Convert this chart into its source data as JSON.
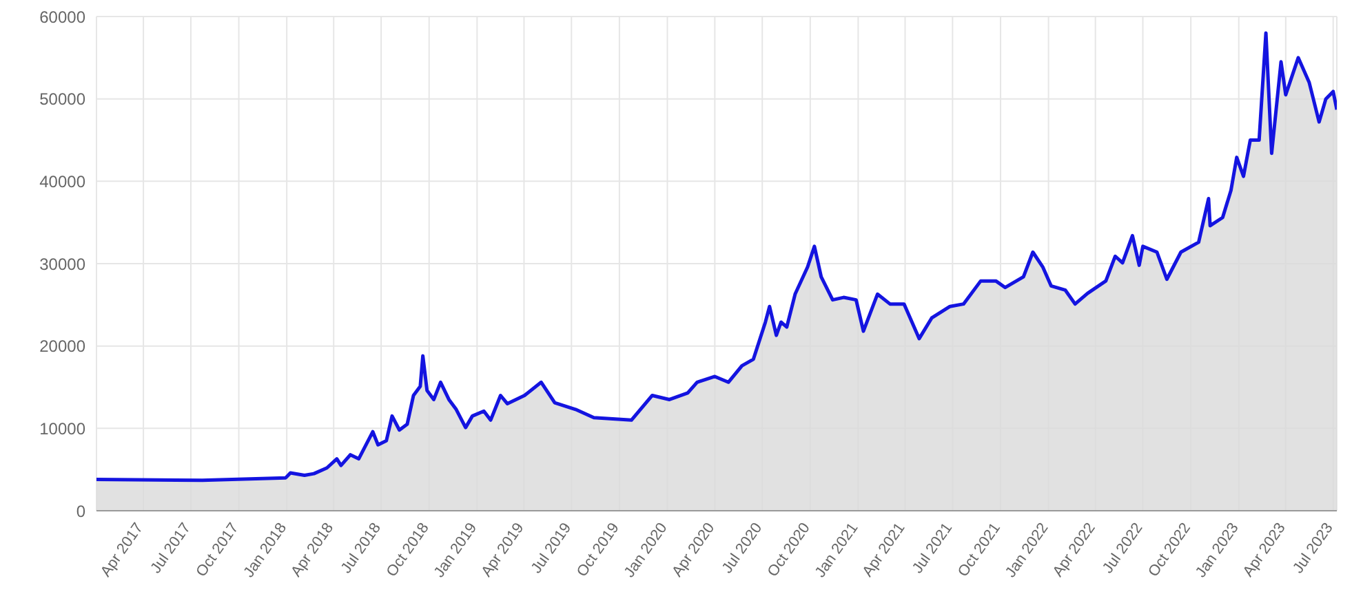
{
  "chart_data": {
    "type": "area",
    "grid": true,
    "xlim": [
      "2017-01-01",
      "2023-07-08"
    ],
    "ylim": [
      0,
      60000
    ],
    "yticks": [
      0,
      10000,
      20000,
      30000,
      40000,
      50000,
      60000
    ],
    "xticks": [
      {
        "value": "2017-04-01",
        "label": "Apr 2017"
      },
      {
        "value": "2017-07-01",
        "label": "Jul 2017"
      },
      {
        "value": "2017-10-01",
        "label": "Oct 2017"
      },
      {
        "value": "2018-01-01",
        "label": "Jan 2018"
      },
      {
        "value": "2018-04-01",
        "label": "Apr 2018"
      },
      {
        "value": "2018-07-01",
        "label": "Jul 2018"
      },
      {
        "value": "2018-10-01",
        "label": "Oct 2018"
      },
      {
        "value": "2019-01-01",
        "label": "Jan 2019"
      },
      {
        "value": "2019-04-01",
        "label": "Apr 2019"
      },
      {
        "value": "2019-07-01",
        "label": "Jul 2019"
      },
      {
        "value": "2019-10-01",
        "label": "Oct 2019"
      },
      {
        "value": "2020-01-01",
        "label": "Jan 2020"
      },
      {
        "value": "2020-04-01",
        "label": "Apr 2020"
      },
      {
        "value": "2020-07-01",
        "label": "Jul 2020"
      },
      {
        "value": "2020-10-01",
        "label": "Oct 2020"
      },
      {
        "value": "2021-01-01",
        "label": "Jan 2021"
      },
      {
        "value": "2021-04-01",
        "label": "Apr 2021"
      },
      {
        "value": "2021-07-01",
        "label": "Jul 2021"
      },
      {
        "value": "2021-10-01",
        "label": "Oct 2021"
      },
      {
        "value": "2022-01-01",
        "label": "Jan 2022"
      },
      {
        "value": "2022-04-01",
        "label": "Apr 2022"
      },
      {
        "value": "2022-07-01",
        "label": "Jul 2022"
      },
      {
        "value": "2022-10-01",
        "label": "Oct 2022"
      },
      {
        "value": "2023-01-01",
        "label": "Jan 2023"
      },
      {
        "value": "2023-04-01",
        "label": "Apr 2023"
      },
      {
        "value": "2023-07-01",
        "label": "Jul 2023"
      }
    ],
    "x": [
      "2017-01-01",
      "2017-07-23",
      "2017-12-30",
      "2018-01-08",
      "2018-02-04",
      "2018-02-22",
      "2018-03-19",
      "2018-04-07",
      "2018-04-15",
      "2018-05-03",
      "2018-05-19",
      "2018-06-15",
      "2018-06-25",
      "2018-07-11",
      "2018-07-22",
      "2018-08-05",
      "2018-08-20",
      "2018-09-01",
      "2018-09-14",
      "2018-09-19",
      "2018-09-27",
      "2018-10-10",
      "2018-10-23",
      "2018-11-08",
      "2018-11-22",
      "2018-12-10",
      "2018-12-23",
      "2019-01-14",
      "2019-01-27",
      "2019-02-15",
      "2019-02-28",
      "2019-04-02",
      "2019-05-04",
      "2019-05-30",
      "2019-07-09",
      "2019-08-13",
      "2019-10-24",
      "2019-12-03",
      "2020-01-05",
      "2020-02-09",
      "2020-02-27",
      "2020-04-01",
      "2020-04-27",
      "2020-05-23",
      "2020-06-14",
      "2020-07-07",
      "2020-07-15",
      "2020-07-28",
      "2020-08-06",
      "2020-08-17",
      "2020-09-02",
      "2020-09-26",
      "2020-10-09",
      "2020-10-22",
      "2020-11-13",
      "2020-12-04",
      "2020-12-28",
      "2021-01-11",
      "2021-02-07",
      "2021-03-03",
      "2021-03-30",
      "2021-04-28",
      "2021-05-22",
      "2021-06-26",
      "2021-07-22",
      "2021-08-24",
      "2021-09-22",
      "2021-10-10",
      "2021-11-14",
      "2021-12-02",
      "2021-12-21",
      "2022-01-06",
      "2022-02-02",
      "2022-02-21",
      "2022-03-17",
      "2022-04-21",
      "2022-05-09",
      "2022-05-23",
      "2022-06-11",
      "2022-06-24",
      "2022-07-01",
      "2022-07-28",
      "2022-08-16",
      "2022-09-12",
      "2022-10-16",
      "2022-11-04",
      "2022-11-07",
      "2022-12-01",
      "2022-12-17",
      "2022-12-28",
      "2023-01-10",
      "2023-01-23",
      "2023-02-09",
      "2023-02-22",
      "2023-03-05",
      "2023-03-23",
      "2023-04-01",
      "2023-04-25",
      "2023-05-16",
      "2023-06-04",
      "2023-06-17",
      "2023-07-01",
      "2023-07-08"
    ],
    "series": [
      {
        "color": "#1414e0",
        "values": [
          3800,
          3700,
          4000,
          4600,
          4300,
          4500,
          5200,
          6300,
          5500,
          6800,
          6300,
          9600,
          8000,
          8500,
          11500,
          9800,
          10500,
          14000,
          15100,
          18800,
          14600,
          13500,
          15600,
          13500,
          12300,
          10100,
          11500,
          12100,
          11000,
          14000,
          13000,
          14000,
          15600,
          13100,
          12300,
          11300,
          11000,
          14000,
          13500,
          14300,
          15600,
          16300,
          15600,
          17600,
          18400,
          22900,
          24800,
          21300,
          22900,
          22300,
          26300,
          29600,
          32100,
          28400,
          25600,
          25900,
          25600,
          21800,
          26300,
          25100,
          25100,
          20900,
          23400,
          24800,
          25100,
          27900,
          27900,
          27100,
          28400,
          31400,
          29600,
          27300,
          26800,
          25100,
          26400,
          27900,
          30900,
          30100,
          33400,
          29800,
          32100,
          31400,
          28100,
          31400,
          32600,
          37900,
          34600,
          35600,
          38900,
          42900,
          40600,
          45000,
          45000,
          58000,
          43400,
          54500,
          50500,
          55000,
          52000,
          47200,
          50000,
          50900,
          48700
        ]
      }
    ]
  }
}
